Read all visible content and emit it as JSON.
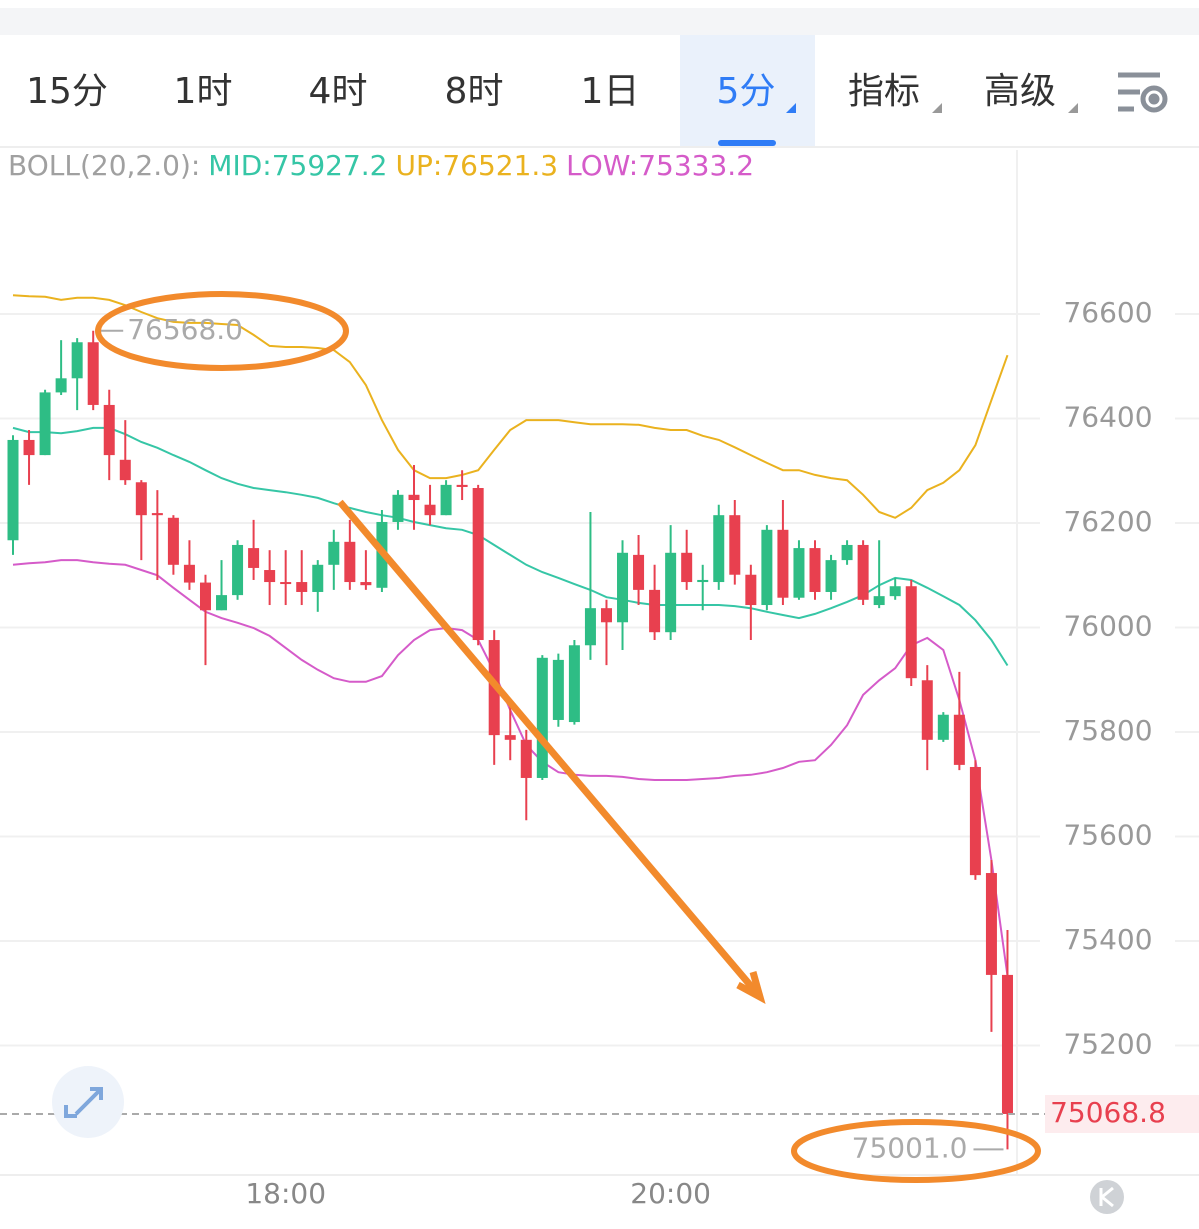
{
  "tabs": [
    "15分",
    "1时",
    "4时",
    "8时",
    "1日",
    "5分",
    "指标",
    "高级"
  ],
  "active_tab": 5,
  "chart_data": {
    "type": "candlestick",
    "indicator_label": "BOLL(20,2.0):",
    "categories": [
      null,
      null,
      null,
      null,
      null,
      null,
      null,
      null,
      null,
      null,
      null,
      null,
      null,
      null,
      null,
      null,
      null,
      "18:00",
      null,
      null,
      null,
      null,
      null,
      null,
      null,
      null,
      null,
      null,
      null,
      null,
      null,
      null,
      null,
      null,
      null,
      null,
      null,
      null,
      null,
      null,
      null,
      "20:00",
      null,
      null,
      null,
      null,
      null,
      null,
      null,
      null,
      null,
      null,
      null,
      null,
      null,
      null,
      null,
      null,
      null,
      null,
      null,
      null,
      null
    ],
    "open": [
      76167,
      76359,
      76330,
      76450,
      76477,
      76546,
      76426,
      76321,
      76278,
      76219,
      76210,
      76120,
      76086,
      76033,
      76062,
      76152,
      76110,
      76087,
      76087,
      76068,
      76120,
      76164,
      76087,
      76076,
      76202,
      76254,
      76235,
      76215,
      76273,
      76267,
      75976,
      75794,
      75785,
      75712,
      75823,
      75819,
      75966,
      76037,
      76010,
      76139,
      76072,
      75991,
      76143,
      76087,
      76087,
      76215,
      76101,
      76043,
      76187,
      76057,
      76152,
      76068,
      76129,
      76158,
      76043,
      76060,
      76079,
      75899,
      75785,
      75833,
      75733,
      75530,
      75335
    ],
    "high": [
      76368,
      76378,
      76455,
      76550,
      76554,
      76568,
      76455,
      76397,
      76282,
      76263,
      76215,
      76167,
      76101,
      76129,
      76167,
      76206,
      76148,
      76148,
      76148,
      76129,
      76187,
      76206,
      76148,
      76225,
      76263,
      76311,
      76273,
      76282,
      76301,
      76273,
      75995,
      75861,
      75804,
      75947,
      75950,
      75976,
      76221,
      76053,
      76167,
      76177,
      76120,
      76196,
      76187,
      76120,
      76235,
      76244,
      76120,
      76196,
      76244,
      76167,
      76167,
      76139,
      76167,
      76167,
      76167,
      76095,
      76091,
      75928,
      75838,
      75915,
      75746,
      75555,
      75421
    ],
    "low": [
      76139,
      76273,
      76330,
      76445,
      76416,
      76416,
      76282,
      76273,
      76129,
      76091,
      76101,
      76072,
      75928,
      76033,
      76053,
      76091,
      76043,
      76043,
      76043,
      76030,
      76072,
      76072,
      76072,
      76068,
      76187,
      76187,
      76196,
      76215,
      76244,
      75966,
      75737,
      75746,
      75631,
      75708,
      75810,
      75814,
      75938,
      75928,
      75957,
      76043,
      75976,
      75976,
      76072,
      76033,
      76072,
      76082,
      75976,
      76033,
      76043,
      76053,
      76053,
      76053,
      76120,
      76043,
      76037,
      76053,
      75888,
      75727,
      75781,
      75727,
      75517,
      75226,
      75001
    ],
    "close": [
      76359,
      76330,
      76450,
      76477,
      76546,
      76426,
      76330,
      76282,
      76215,
      76215,
      76120,
      76086,
      76033,
      76062,
      76158,
      76114,
      76087,
      76085,
      76068,
      76120,
      76164,
      76087,
      76081,
      76202,
      76254,
      76244,
      76215,
      76273,
      76269,
      75976,
      75794,
      75785,
      75712,
      75942,
      75938,
      75966,
      76037,
      76010,
      76143,
      76072,
      75991,
      76143,
      76087,
      76091,
      76215,
      76101,
      76043,
      76187,
      76057,
      76152,
      76068,
      76129,
      76158,
      76053,
      76060,
      76079,
      75903,
      75785,
      75833,
      75737,
      75526,
      75335,
      75068.8
    ],
    "up_color": "#2ebd85",
    "down_color": "#e8404f",
    "series": [
      {
        "name": "MID:75927.2",
        "color": "#36c6a6",
        "values": [
          76382,
          76374,
          76374,
          76372,
          76376,
          76382,
          76382,
          76370,
          76355,
          76344,
          76330,
          76317,
          76301,
          76286,
          76275,
          76267,
          76263,
          76259,
          76254,
          76248,
          76238,
          76229,
          76221,
          76215,
          76210,
          76202,
          76196,
          76190,
          76187,
          76177,
          76158,
          76139,
          76120,
          76106,
          76095,
          76083,
          76072,
          76058,
          76053,
          76047,
          76043,
          76043,
          76043,
          76043,
          76043,
          76041,
          76037,
          76030,
          76024,
          76018,
          76026,
          76037,
          76049,
          76062,
          76081,
          76095,
          76091,
          76076,
          76060,
          76043,
          76014,
          75976,
          75927.2
        ]
      },
      {
        "name": "UP:76521.3",
        "color": "#eab21f",
        "values": [
          76636,
          76634,
          76633,
          76627,
          76631,
          76631,
          76627,
          76617,
          76604,
          76592,
          76585,
          76583,
          76583,
          76581,
          76579,
          76560,
          76539,
          76537,
          76537,
          76535,
          76531,
          76508,
          76464,
          76397,
          76340,
          76301,
          76286,
          76286,
          76292,
          76301,
          76340,
          76378,
          76397,
          76397,
          76397,
          76393,
          76389,
          76389,
          76389,
          76388,
          76382,
          76378,
          76378,
          76367,
          76359,
          76345,
          76330,
          76315,
          76301,
          76301,
          76292,
          76286,
          76282,
          76254,
          76221,
          76210,
          76229,
          76263,
          76277,
          76301,
          76349,
          76435,
          76521.3
        ]
      },
      {
        "name": "LOW:75333.2",
        "color": "#d55bc9",
        "values": [
          76120,
          76123,
          76125,
          76129,
          76129,
          76125,
          76122,
          76120,
          76110,
          76100,
          76076,
          76053,
          76030,
          76018,
          76009,
          75999,
          75984,
          75961,
          75938,
          75919,
          75903,
          75896,
          75896,
          75907,
          75947,
          75976,
          75995,
          75999,
          75995,
          75976,
          75915,
          75842,
          75775,
          75743,
          75723,
          75718,
          75716,
          75716,
          75714,
          75710,
          75708,
          75708,
          75708,
          75710,
          75712,
          75716,
          75718,
          75723,
          75731,
          75743,
          75746,
          75775,
          75813,
          75871,
          75899,
          75922,
          75966,
          75980,
          75957,
          75861,
          75746,
          75555,
          75333.2
        ]
      }
    ],
    "ylim": [
      74952,
      76914
    ],
    "yticks": [
      75200,
      75400,
      75600,
      75800,
      76000,
      76200,
      76400,
      76600
    ],
    "grid": true,
    "high_marker": {
      "value": 76568,
      "label": "76568.0"
    },
    "low_marker": {
      "value": 75001,
      "label": "75001.0"
    },
    "last_price": 75068.8
  }
}
